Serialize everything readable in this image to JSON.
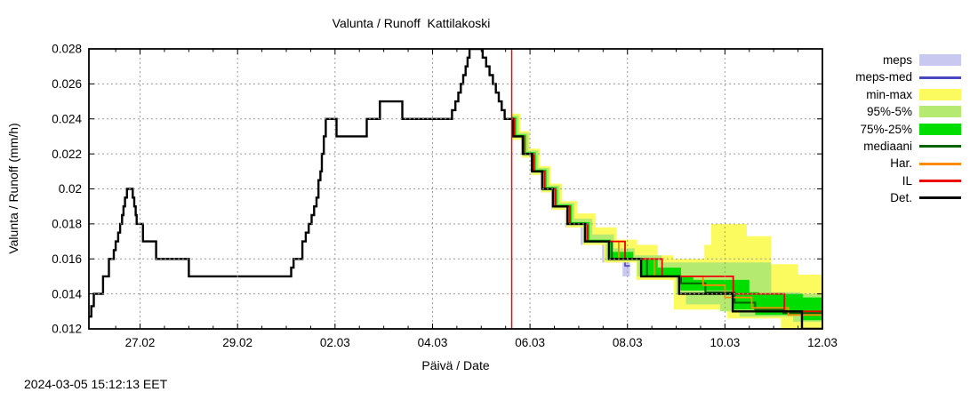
{
  "title": "Valunta / Runoff  Kattilakoski",
  "timestamp": "2024-03-05 15:12:13 EET",
  "axes": {
    "y_label": "Valunta / Runoff (mm/h)",
    "x_label": "Päivä / Date"
  },
  "legend": {
    "items": [
      {
        "label": "meps",
        "type": "band",
        "color": "#c8c8f0"
      },
      {
        "label": "meps-med",
        "type": "line",
        "color": "#4747c2"
      },
      {
        "label": "min-max",
        "type": "band",
        "color": "#fbfb5f"
      },
      {
        "label": "95%-5%",
        "type": "band",
        "color": "#b5ea70"
      },
      {
        "label": "75%-25%",
        "type": "band",
        "color": "#00dd00"
      },
      {
        "label": "mediaani",
        "type": "line",
        "color": "#006400"
      },
      {
        "label": "Har.",
        "type": "line",
        "color": "#ff8c00"
      },
      {
        "label": "IL",
        "type": "line",
        "color": "#ee0000"
      },
      {
        "label": "Det.",
        "type": "line",
        "color": "#000000"
      }
    ]
  },
  "chart_data": {
    "type": "line",
    "title": "Valunta / Runoff  Kattilakoski",
    "xlabel": "Päivä / Date",
    "ylabel": "Valunta / Runoff (mm/h)",
    "x_unit": "days, 0 = 26.02.2024 00:00",
    "xlim": [
      -0.05,
      15.0
    ],
    "ylim": [
      0.012,
      0.028
    ],
    "grid": true,
    "legend_position": "right-outside",
    "now_line": {
      "d": 8.625,
      "color": "#ff0000",
      "label_time": "2024-03-05 15:12:13 EET"
    },
    "x_ticks_major": [
      {
        "d": 1,
        "label": "27.02"
      },
      {
        "d": 3,
        "label": "29.02"
      },
      {
        "d": 5,
        "label": "02.03"
      },
      {
        "d": 7,
        "label": "04.03"
      },
      {
        "d": 9,
        "label": "06.03"
      },
      {
        "d": 11,
        "label": "08.03"
      },
      {
        "d": 13,
        "label": "10.03"
      },
      {
        "d": 15,
        "label": "12.03"
      }
    ],
    "minor_tick_step": 0.5,
    "y_ticks": [
      {
        "v": 0.012,
        "label": "0.012"
      },
      {
        "v": 0.014,
        "label": "0.014"
      },
      {
        "v": 0.016,
        "label": "0.016"
      },
      {
        "v": 0.018,
        "label": "0.018"
      },
      {
        "v": 0.02,
        "label": "0.02"
      },
      {
        "v": 0.022,
        "label": "0.022"
      },
      {
        "v": 0.024,
        "label": "0.024"
      },
      {
        "v": 0.026,
        "label": "0.026"
      },
      {
        "v": 0.028,
        "label": "0.028"
      }
    ],
    "bands": {
      "meps": {
        "color": "#c8c8f0",
        "high": [
          [
            8.63,
            0.0242
          ],
          [
            8.74,
            0.0232
          ],
          [
            8.94,
            0.0222
          ],
          [
            9.14,
            0.0212
          ],
          [
            9.36,
            0.0202
          ],
          [
            9.57,
            0.0192
          ],
          [
            9.87,
            0.0182
          ],
          [
            10.22,
            0.0172
          ],
          [
            10.7,
            0.0162
          ],
          [
            11.05,
            0.0158
          ]
        ],
        "low": [
          [
            8.63,
            0.0238
          ],
          [
            8.65,
            0.0228
          ],
          [
            8.84,
            0.0218
          ],
          [
            9.02,
            0.0208
          ],
          [
            9.23,
            0.0198
          ],
          [
            9.44,
            0.0188
          ],
          [
            9.72,
            0.0178
          ],
          [
            10.04,
            0.0168
          ],
          [
            10.48,
            0.0158
          ],
          [
            10.9,
            0.015
          ],
          [
            11.05,
            0.015
          ]
        ]
      },
      "minmax": {
        "color": "#fbfb5f",
        "high": [
          [
            8.63,
            0.0243
          ],
          [
            8.8,
            0.0233
          ],
          [
            9.0,
            0.0223
          ],
          [
            9.2,
            0.0213
          ],
          [
            9.42,
            0.0203
          ],
          [
            9.66,
            0.0193
          ],
          [
            9.97,
            0.0186
          ],
          [
            10.35,
            0.0178
          ],
          [
            10.78,
            0.0171
          ],
          [
            11.2,
            0.0168
          ],
          [
            11.62,
            0.0162
          ],
          [
            11.95,
            0.016
          ],
          [
            12.58,
            0.0168
          ],
          [
            12.72,
            0.018
          ],
          [
            13.45,
            0.0173
          ],
          [
            13.95,
            0.0157
          ],
          [
            14.5,
            0.0151
          ],
          [
            15,
            0.0151
          ]
        ],
        "low": [
          [
            8.63,
            0.0237
          ],
          [
            8.64,
            0.0228
          ],
          [
            8.83,
            0.0218
          ],
          [
            9.02,
            0.0208
          ],
          [
            9.23,
            0.0198
          ],
          [
            9.45,
            0.0188
          ],
          [
            9.74,
            0.0178
          ],
          [
            10.08,
            0.0168
          ],
          [
            10.52,
            0.0158
          ],
          [
            11.18,
            0.0148
          ],
          [
            11.95,
            0.0131
          ],
          [
            13.05,
            0.0126
          ],
          [
            14.15,
            0.012
          ],
          [
            15,
            0.012
          ]
        ]
      },
      "p95_5": {
        "color": "#b5ea70",
        "high": [
          [
            8.63,
            0.0242
          ],
          [
            8.77,
            0.0232
          ],
          [
            8.97,
            0.0222
          ],
          [
            9.17,
            0.0212
          ],
          [
            9.39,
            0.0202
          ],
          [
            9.61,
            0.0192
          ],
          [
            9.91,
            0.0183
          ],
          [
            10.28,
            0.0174
          ],
          [
            10.72,
            0.0166
          ],
          [
            11.15,
            0.0162
          ],
          [
            11.7,
            0.0158
          ],
          [
            13.95,
            0.0141
          ],
          [
            14.55,
            0.014
          ],
          [
            15,
            0.014
          ]
        ],
        "low": [
          [
            8.63,
            0.0238
          ],
          [
            8.65,
            0.0229
          ],
          [
            8.85,
            0.0219
          ],
          [
            9.04,
            0.0209
          ],
          [
            9.25,
            0.0199
          ],
          [
            9.46,
            0.0189
          ],
          [
            9.75,
            0.0179
          ],
          [
            10.09,
            0.0169
          ],
          [
            10.55,
            0.0159
          ],
          [
            11.2,
            0.015
          ],
          [
            12.0,
            0.014
          ],
          [
            12.2,
            0.0134
          ],
          [
            12.9,
            0.013
          ],
          [
            13.3,
            0.0127
          ],
          [
            14.4,
            0.0124
          ],
          [
            15,
            0.0124
          ]
        ]
      },
      "p75_25": {
        "color": "#00dd00",
        "high": [
          [
            8.63,
            0.0241
          ],
          [
            8.72,
            0.0231
          ],
          [
            8.92,
            0.0221
          ],
          [
            9.12,
            0.0211
          ],
          [
            9.34,
            0.0201
          ],
          [
            9.56,
            0.0191
          ],
          [
            9.86,
            0.0181
          ],
          [
            10.22,
            0.0171
          ],
          [
            10.66,
            0.0164
          ],
          [
            11.12,
            0.016
          ],
          [
            11.62,
            0.0155
          ],
          [
            12.1,
            0.015
          ],
          [
            12.35,
            0.0148
          ],
          [
            13.5,
            0.0141
          ],
          [
            13.7,
            0.014
          ],
          [
            14.6,
            0.0138
          ],
          [
            15,
            0.0138
          ]
        ],
        "low": [
          [
            8.63,
            0.0239
          ],
          [
            8.66,
            0.023
          ],
          [
            8.86,
            0.022
          ],
          [
            9.05,
            0.021
          ],
          [
            9.27,
            0.02
          ],
          [
            9.49,
            0.019
          ],
          [
            9.79,
            0.018
          ],
          [
            10.15,
            0.017
          ],
          [
            10.63,
            0.016
          ],
          [
            11.29,
            0.015
          ],
          [
            12.07,
            0.0142
          ],
          [
            13.17,
            0.0131
          ],
          [
            13.62,
            0.0128
          ],
          [
            14.6,
            0.0125
          ],
          [
            15,
            0.0125
          ]
        ]
      }
    },
    "series": {
      "det": {
        "color": "#000000",
        "width": 2.4,
        "points": [
          [
            -0.05,
            0.0127
          ],
          [
            0.0,
            0.0133
          ],
          [
            0.05,
            0.014
          ],
          [
            0.24,
            0.015
          ],
          [
            0.36,
            0.016
          ],
          [
            0.46,
            0.0165
          ],
          [
            0.5,
            0.017
          ],
          [
            0.55,
            0.0175
          ],
          [
            0.59,
            0.018
          ],
          [
            0.63,
            0.0185
          ],
          [
            0.66,
            0.019
          ],
          [
            0.69,
            0.0195
          ],
          [
            0.73,
            0.02
          ],
          [
            0.85,
            0.0195
          ],
          [
            0.88,
            0.019
          ],
          [
            0.91,
            0.0185
          ],
          [
            0.93,
            0.018
          ],
          [
            1.06,
            0.017
          ],
          [
            1.33,
            0.016
          ],
          [
            2.0,
            0.015
          ],
          [
            4.1,
            0.0155
          ],
          [
            4.15,
            0.016
          ],
          [
            4.33,
            0.017
          ],
          [
            4.4,
            0.0175
          ],
          [
            4.46,
            0.018
          ],
          [
            4.52,
            0.0185
          ],
          [
            4.57,
            0.019
          ],
          [
            4.62,
            0.0195
          ],
          [
            4.66,
            0.0205
          ],
          [
            4.7,
            0.021
          ],
          [
            4.73,
            0.022
          ],
          [
            4.77,
            0.023
          ],
          [
            4.81,
            0.024
          ],
          [
            5.03,
            0.023
          ],
          [
            5.65,
            0.024
          ],
          [
            5.92,
            0.025
          ],
          [
            6.38,
            0.024
          ],
          [
            7.4,
            0.0245
          ],
          [
            7.47,
            0.025
          ],
          [
            7.53,
            0.0255
          ],
          [
            7.58,
            0.026
          ],
          [
            7.63,
            0.0265
          ],
          [
            7.68,
            0.027
          ],
          [
            7.72,
            0.0275
          ],
          [
            7.76,
            0.028
          ],
          [
            8.03,
            0.0275
          ],
          [
            8.1,
            0.027
          ],
          [
            8.17,
            0.0265
          ],
          [
            8.24,
            0.026
          ],
          [
            8.3,
            0.0255
          ],
          [
            8.36,
            0.025
          ],
          [
            8.42,
            0.0245
          ],
          [
            8.48,
            0.024
          ],
          [
            8.65,
            0.023
          ],
          [
            8.85,
            0.022
          ],
          [
            9.04,
            0.021
          ],
          [
            9.25,
            0.02
          ],
          [
            9.47,
            0.019
          ],
          [
            9.77,
            0.018
          ],
          [
            10.13,
            0.017
          ],
          [
            10.62,
            0.016
          ],
          [
            11.28,
            0.015
          ],
          [
            12.06,
            0.014
          ],
          [
            13.16,
            0.013
          ],
          [
            14.58,
            0.012
          ],
          [
            15.0,
            0.012
          ]
        ]
      },
      "il": {
        "color": "#ee0000",
        "width": 1.8,
        "points": [
          [
            8.63,
            0.024
          ],
          [
            8.68,
            0.023
          ],
          [
            8.88,
            0.022
          ],
          [
            9.08,
            0.021
          ],
          [
            9.3,
            0.02
          ],
          [
            9.52,
            0.019
          ],
          [
            9.82,
            0.018
          ],
          [
            10.18,
            0.017
          ],
          [
            10.95,
            0.016
          ],
          [
            11.71,
            0.015
          ],
          [
            13.17,
            0.014
          ],
          [
            14.22,
            0.013
          ],
          [
            15.0,
            0.013
          ]
        ]
      },
      "har": {
        "color": "#ff8c00",
        "width": 1.8,
        "points": [
          [
            8.63,
            0.024
          ],
          [
            8.67,
            0.023
          ],
          [
            8.87,
            0.022
          ],
          [
            9.06,
            0.021
          ],
          [
            9.28,
            0.02
          ],
          [
            9.5,
            0.019
          ],
          [
            9.8,
            0.018
          ],
          [
            10.16,
            0.017
          ],
          [
            10.82,
            0.016
          ],
          [
            11.55,
            0.015
          ],
          [
            12.55,
            0.0145
          ],
          [
            13.0,
            0.0138
          ],
          [
            13.55,
            0.0132
          ],
          [
            14.3,
            0.0128
          ],
          [
            15.0,
            0.0128
          ]
        ]
      },
      "mediaani": {
        "color": "#006400",
        "width": 2,
        "points": [
          [
            8.63,
            0.024
          ],
          [
            8.66,
            0.023
          ],
          [
            8.86,
            0.022
          ],
          [
            9.05,
            0.021
          ],
          [
            9.27,
            0.02
          ],
          [
            9.48,
            0.019
          ],
          [
            9.78,
            0.018
          ],
          [
            10.14,
            0.017
          ],
          [
            10.68,
            0.016
          ],
          [
            11.4,
            0.015
          ],
          [
            12.1,
            0.0146
          ],
          [
            12.6,
            0.0141
          ],
          [
            13.2,
            0.0135
          ],
          [
            13.62,
            0.0131
          ],
          [
            14.2,
            0.0129
          ],
          [
            15.0,
            0.0129
          ]
        ]
      },
      "meps_med": {
        "color": "#4747c2",
        "width": 1.6,
        "points": [
          [
            8.63,
            0.024
          ],
          [
            8.655,
            0.023
          ],
          [
            8.855,
            0.022
          ],
          [
            9.045,
            0.021
          ],
          [
            9.26,
            0.02
          ],
          [
            9.47,
            0.019
          ],
          [
            9.765,
            0.018
          ],
          [
            10.13,
            0.017
          ],
          [
            10.6,
            0.016
          ],
          [
            10.95,
            0.0156
          ],
          [
            11.05,
            0.0156
          ]
        ]
      }
    }
  }
}
